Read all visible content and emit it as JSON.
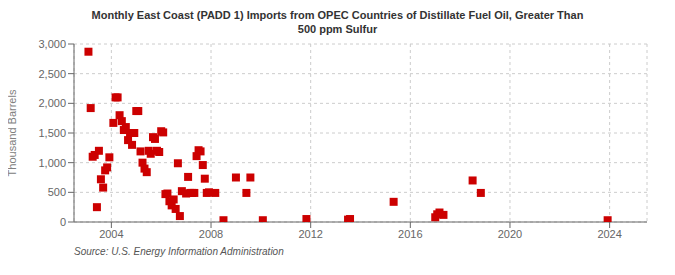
{
  "chart_data": {
    "type": "scatter",
    "title": "Monthly East Coast (PADD 1) Imports from OPEC Countries of Distillate Fuel Oil, Greater Than\n500 ppm Sulfur",
    "y_label": "Thousand Barrels",
    "annotations": [
      "Source: U.S. Energy Information Administration"
    ],
    "color": "#cc0000",
    "marker": "square",
    "grid": true,
    "xlim": [
      2002.5,
      2025.5
    ],
    "xticks": [
      2004,
      2008,
      2012,
      2016,
      2020,
      2024
    ],
    "ylim": [
      0,
      3000
    ],
    "yticks": [
      0,
      500,
      {
        "value": 1000,
        "label": "1,000"
      },
      {
        "value": 1500,
        "label": "1,500"
      },
      {
        "value": 2000,
        "label": "2,000"
      },
      {
        "value": 2500,
        "label": "2,500"
      },
      {
        "value": 3000,
        "label": "3,000"
      }
    ],
    "x": [
      2003.08,
      2003.17,
      2003.25,
      2003.33,
      2003.42,
      2003.5,
      2003.58,
      2003.67,
      2003.75,
      2003.83,
      2003.92,
      2004.08,
      2004.17,
      2004.25,
      2004.33,
      2004.42,
      2004.5,
      2004.58,
      2004.67,
      2004.75,
      2004.83,
      2004.92,
      2005.0,
      2005.08,
      2005.17,
      2005.25,
      2005.33,
      2005.42,
      2005.5,
      2005.58,
      2005.67,
      2005.75,
      2005.83,
      2005.92,
      2006.0,
      2006.08,
      2006.17,
      2006.25,
      2006.33,
      2006.42,
      2006.5,
      2006.58,
      2006.67,
      2006.75,
      2006.83,
      2007.0,
      2007.08,
      2007.17,
      2007.25,
      2007.33,
      2007.42,
      2007.5,
      2007.58,
      2007.67,
      2007.75,
      2007.83,
      2007.92,
      2008.17,
      2008.5,
      2009.0,
      2009.42,
      2009.58,
      2010.08,
      2011.83,
      2013.5,
      2013.58,
      2015.33,
      2017.0,
      2017.08,
      2017.17,
      2017.33,
      2018.5,
      2018.83,
      2023.92
    ],
    "values": [
      2870,
      1920,
      1100,
      1130,
      250,
      1200,
      720,
      580,
      870,
      920,
      1090,
      1670,
      2100,
      2100,
      1800,
      1700,
      1550,
      1600,
      1380,
      1500,
      1300,
      1500,
      1870,
      1870,
      1190,
      1000,
      900,
      840,
      1200,
      1150,
      1430,
      1400,
      1200,
      1180,
      1530,
      1510,
      470,
      480,
      350,
      280,
      380,
      220,
      990,
      100,
      520,
      480,
      760,
      490,
      490,
      490,
      1110,
      1210,
      1190,
      960,
      730,
      490,
      500,
      490,
      30,
      750,
      490,
      750,
      30,
      50,
      40,
      50,
      340,
      80,
      130,
      160,
      120,
      700,
      490,
      30
    ]
  }
}
